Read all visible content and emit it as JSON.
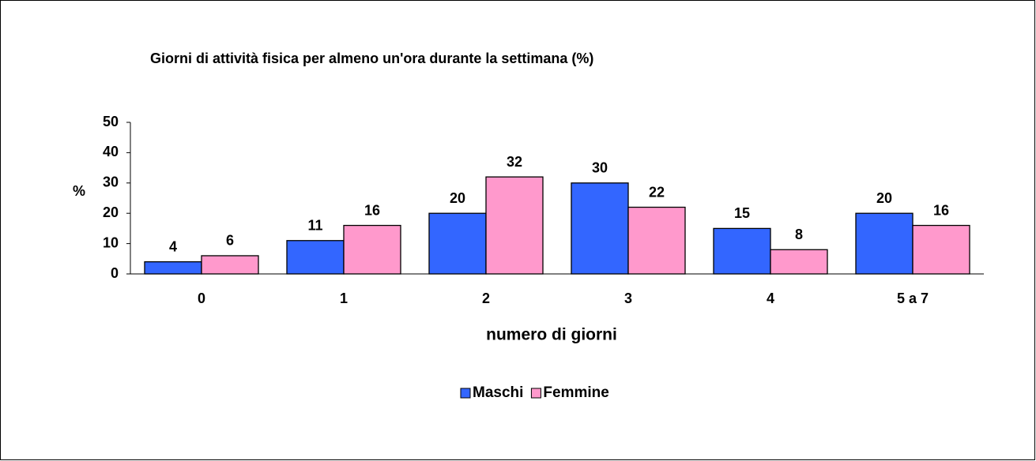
{
  "chart_data": {
    "type": "bar",
    "title": "Giorni di attività fisica per almeno un'ora durante la settimana (%)",
    "x_label": "numero di giorni",
    "y_label": "%",
    "categories": [
      "0",
      "1",
      "2",
      "3",
      "4",
      "5 a 7"
    ],
    "series": [
      {
        "name": "Maschi",
        "color": "#3366ff",
        "values": [
          4,
          11,
          20,
          30,
          15,
          20
        ]
      },
      {
        "name": "Femmine",
        "color": "#ff99cc",
        "values": [
          6,
          16,
          32,
          22,
          8,
          16
        ]
      }
    ],
    "ylim": [
      0,
      50
    ],
    "yticks": [
      0,
      10,
      20,
      30,
      40,
      50
    ],
    "grid": false,
    "legend": "bottom"
  }
}
